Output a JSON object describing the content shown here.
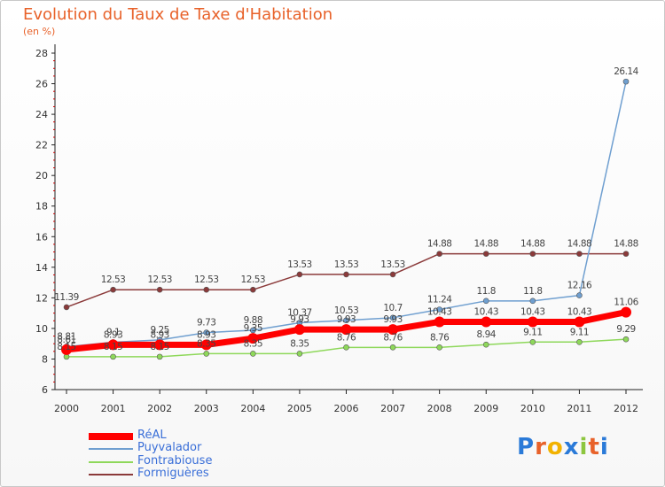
{
  "title": "Evolution du Taux de Taxe d'Habitation",
  "unit": "(en %)",
  "logo": {
    "chars": [
      "P",
      "r",
      "o",
      "x",
      "i",
      "t",
      "i"
    ],
    "colors": [
      "#2a7ad8",
      "#e8622a",
      "#f2b200",
      "#2a7ad8",
      "#8dc63f",
      "#e8622a",
      "#2a7ad8"
    ]
  },
  "chart_data": {
    "type": "line",
    "title": "Evolution du Taux de Taxe d'Habitation",
    "ylabel": "(en %)",
    "xlabel": "",
    "x": [
      "2000",
      "2001",
      "2002",
      "2003",
      "2004",
      "2005",
      "2006",
      "2007",
      "2008",
      "2009",
      "2010",
      "2011",
      "2012"
    ],
    "ylim": [
      6,
      28
    ],
    "yticks": [
      6,
      8,
      10,
      12,
      14,
      16,
      18,
      20,
      22,
      24,
      26,
      28
    ],
    "grid": false,
    "legend_position": "bottom-left",
    "series": [
      {
        "name": "RéAL",
        "color": "#ff0000",
        "width": 7,
        "marker": 6,
        "values": [
          8.61,
          8.93,
          8.93,
          8.93,
          9.35,
          9.93,
          9.93,
          9.93,
          10.43,
          10.43,
          10.43,
          10.43,
          11.06
        ],
        "labels": [
          "8.61",
          "8.93",
          "8.93",
          "8.93",
          "9.35",
          "9.93",
          "9.93",
          "9.93",
          "10.43",
          "10.43",
          "10.43",
          "10.43",
          "11.06"
        ]
      },
      {
        "name": "Puyvalador",
        "color": "#6f9fd0",
        "width": 1.5,
        "marker": 3,
        "values": [
          8.81,
          9.1,
          9.25,
          9.73,
          9.88,
          10.37,
          10.53,
          10.7,
          11.24,
          11.8,
          11.8,
          12.16,
          26.14
        ],
        "labels": [
          "8.81",
          "9.1",
          "9.25",
          "9.73",
          "9.88",
          "10.37",
          "10.53",
          "10.7",
          "11.24",
          "11.8",
          "11.8",
          "12.16",
          "26.14"
        ]
      },
      {
        "name": "Fontrabiouse",
        "color": "#8ed85a",
        "width": 1.5,
        "marker": 3,
        "values": [
          8.15,
          8.15,
          8.15,
          8.35,
          8.35,
          8.35,
          8.76,
          8.76,
          8.76,
          8.94,
          9.11,
          9.11,
          9.29
        ],
        "labels": [
          "8.15",
          "8.15",
          "8.15",
          "8.35",
          "8.35",
          "8.35",
          "8.76",
          "8.76",
          "8.76",
          "8.94",
          "9.11",
          "9.11",
          "9.29"
        ]
      },
      {
        "name": "Formiguères",
        "color": "#8b3a3a",
        "width": 1.5,
        "marker": 3,
        "values": [
          11.39,
          12.53,
          12.53,
          12.53,
          12.53,
          13.53,
          13.53,
          13.53,
          14.88,
          14.88,
          14.88,
          14.88,
          14.88
        ],
        "labels": [
          "11.39",
          "12.53",
          "12.53",
          "12.53",
          "12.53",
          "13.53",
          "13.53",
          "13.53",
          "14.88",
          "14.88",
          "14.88",
          "14.88",
          "14.88"
        ]
      }
    ]
  }
}
